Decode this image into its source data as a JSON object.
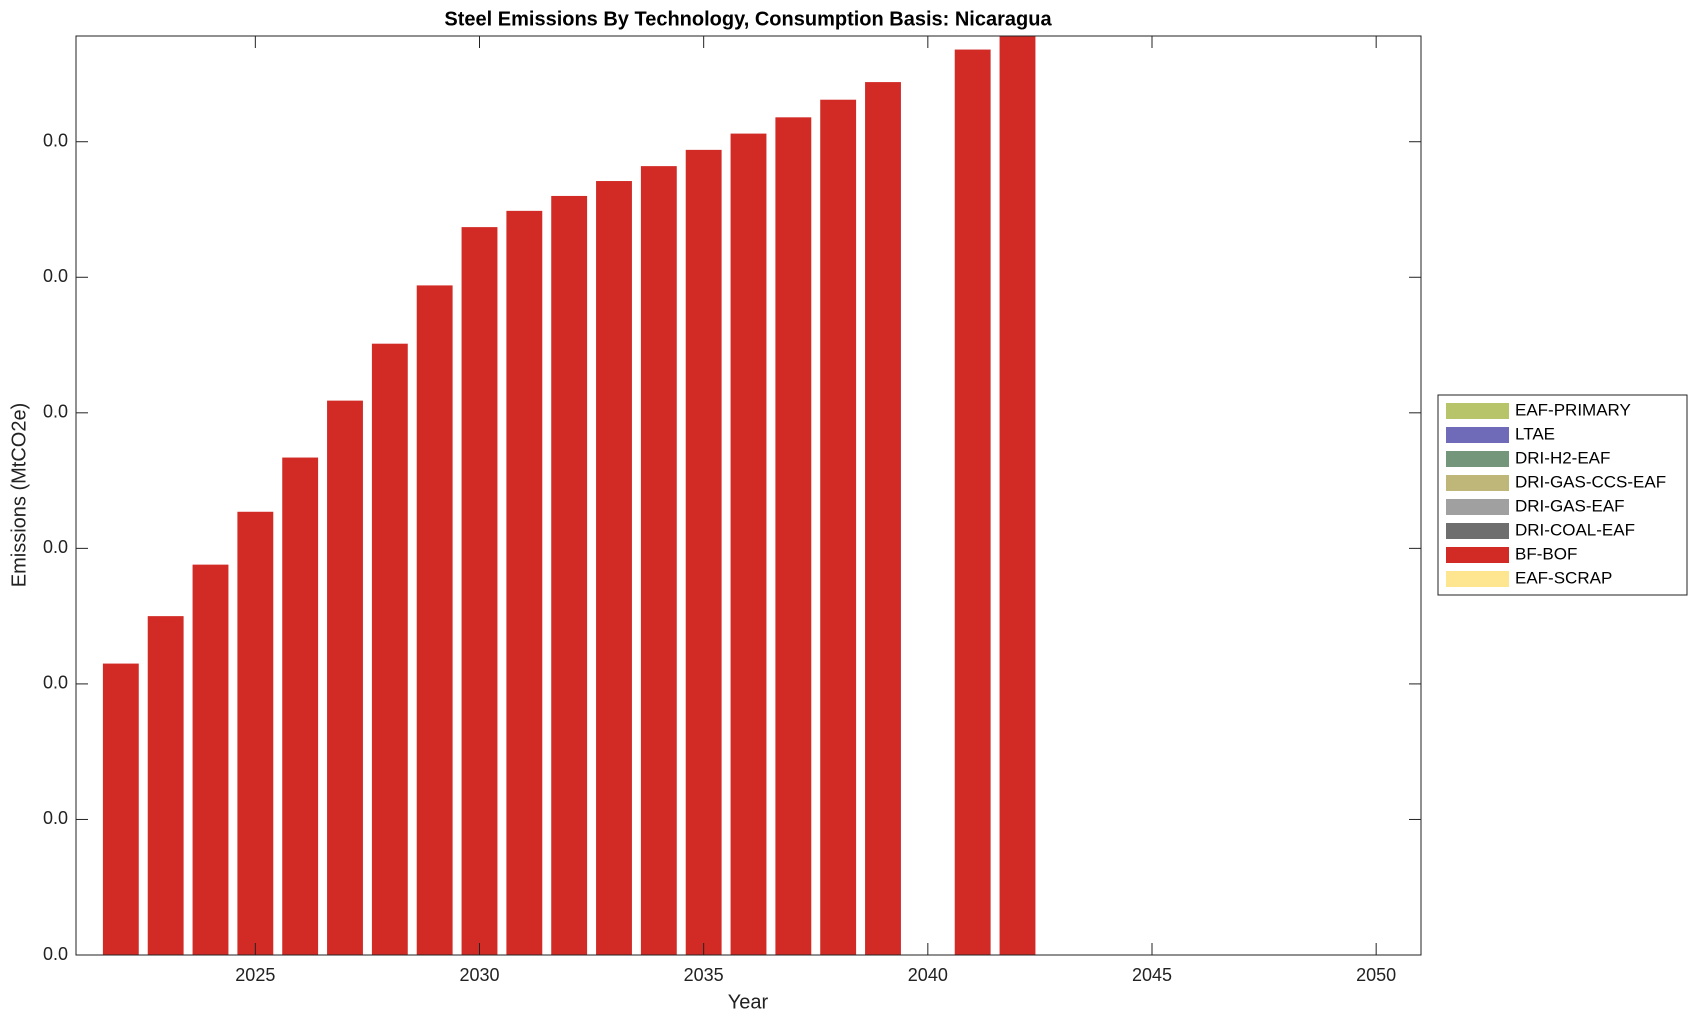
{
  "chart_data": {
    "type": "bar",
    "stacked": true,
    "title": "Steel Emissions By Technology, Consumption Basis: Nicaragua",
    "x_label": "Year",
    "y_label": "Emissions (MtCO2e)",
    "x": [
      2022,
      2023,
      2024,
      2025,
      2026,
      2027,
      2028,
      2029,
      2030,
      2031,
      2032,
      2033,
      2034,
      2035,
      2036,
      2037,
      2038,
      2039,
      2040,
      2041,
      2042,
      2043,
      2044,
      2045,
      2046,
      2047,
      2048,
      2049,
      2050
    ],
    "xlim": [
      2021,
      2051
    ],
    "xticks": [
      2025,
      2030,
      2035,
      2040,
      2045,
      2050
    ],
    "ylim": [
      0,
      0.00678
    ],
    "yticks": [
      {
        "value": 0,
        "label": "0.0"
      },
      {
        "value": 0.001,
        "label": "0.0"
      },
      {
        "value": 0.002,
        "label": "0.0"
      },
      {
        "value": 0.003,
        "label": "0.0"
      },
      {
        "value": 0.004,
        "label": "0.0"
      },
      {
        "value": 0.005,
        "label": "0.0"
      },
      {
        "value": 0.006,
        "label": "0.0"
      }
    ],
    "legend": "right",
    "series": [
      {
        "name": "EAF-PRIMARY",
        "color": "#b8c46a",
        "values": [
          0,
          0,
          0,
          0,
          0,
          0,
          0,
          0,
          0,
          0,
          0,
          0,
          0,
          0,
          0,
          0,
          0,
          0,
          0,
          0,
          0,
          0,
          0,
          0,
          0,
          0,
          0,
          0,
          0
        ]
      },
      {
        "name": "LTAE",
        "color": "#6f6bb8",
        "values": [
          0,
          0,
          0,
          0,
          0,
          0,
          0,
          0,
          0,
          0,
          0,
          0,
          0,
          0,
          0,
          0,
          0,
          0,
          0,
          0,
          0,
          0,
          0,
          0,
          0,
          0,
          0,
          0,
          0
        ]
      },
      {
        "name": "DRI-H2-EAF",
        "color": "#74967a",
        "values": [
          0,
          0,
          0,
          0,
          0,
          0,
          0,
          0,
          0,
          0,
          0,
          0,
          0,
          0,
          0,
          0,
          0,
          0,
          0,
          0,
          0,
          0,
          0,
          0,
          0,
          0,
          0,
          0,
          0
        ]
      },
      {
        "name": "DRI-GAS-CCS-EAF",
        "color": "#bfb67a",
        "values": [
          0,
          0,
          0,
          0,
          0,
          0,
          0,
          0,
          0,
          0,
          0,
          0,
          0,
          0,
          0,
          0,
          0,
          0,
          0,
          0,
          0,
          0,
          0,
          0,
          0,
          0,
          0,
          0,
          0
        ]
      },
      {
        "name": "DRI-GAS-EAF",
        "color": "#a0a0a0",
        "values": [
          0,
          0,
          0,
          0,
          0,
          0,
          0,
          0,
          0,
          0,
          0,
          0,
          0,
          0,
          0,
          0,
          0,
          0,
          0,
          0,
          0,
          0,
          0,
          0,
          0,
          0,
          0,
          0,
          0
        ]
      },
      {
        "name": "DRI-COAL-EAF",
        "color": "#6e6e6e",
        "values": [
          0,
          0,
          0,
          0,
          0,
          0,
          0,
          0,
          0,
          0,
          0,
          0,
          0,
          0,
          0,
          0,
          0,
          0,
          0,
          0,
          0,
          0,
          0,
          0,
          0,
          0,
          0,
          0,
          0
        ]
      },
      {
        "name": "BF-BOF",
        "color": "#d22b26",
        "values": [
          0.00215,
          0.0025,
          0.00288,
          0.00327,
          0.00367,
          0.00409,
          0.00451,
          0.00494,
          0.00537,
          0.00549,
          0.0056,
          0.00571,
          0.00582,
          0.00594,
          0.00606,
          0.00618,
          0.00631,
          0.00644,
          0,
          0.00668,
          0.0069,
          0,
          0,
          0,
          0,
          0,
          0,
          0,
          0
        ]
      },
      {
        "name": "EAF-SCRAP",
        "color": "#fde68f",
        "values": [
          0,
          0,
          0,
          0,
          0,
          0,
          0,
          0,
          0,
          0,
          0,
          0,
          0,
          0,
          0,
          0,
          0,
          0,
          0,
          0,
          0,
          0,
          0,
          0,
          0,
          0,
          0,
          0,
          0
        ]
      }
    ]
  }
}
